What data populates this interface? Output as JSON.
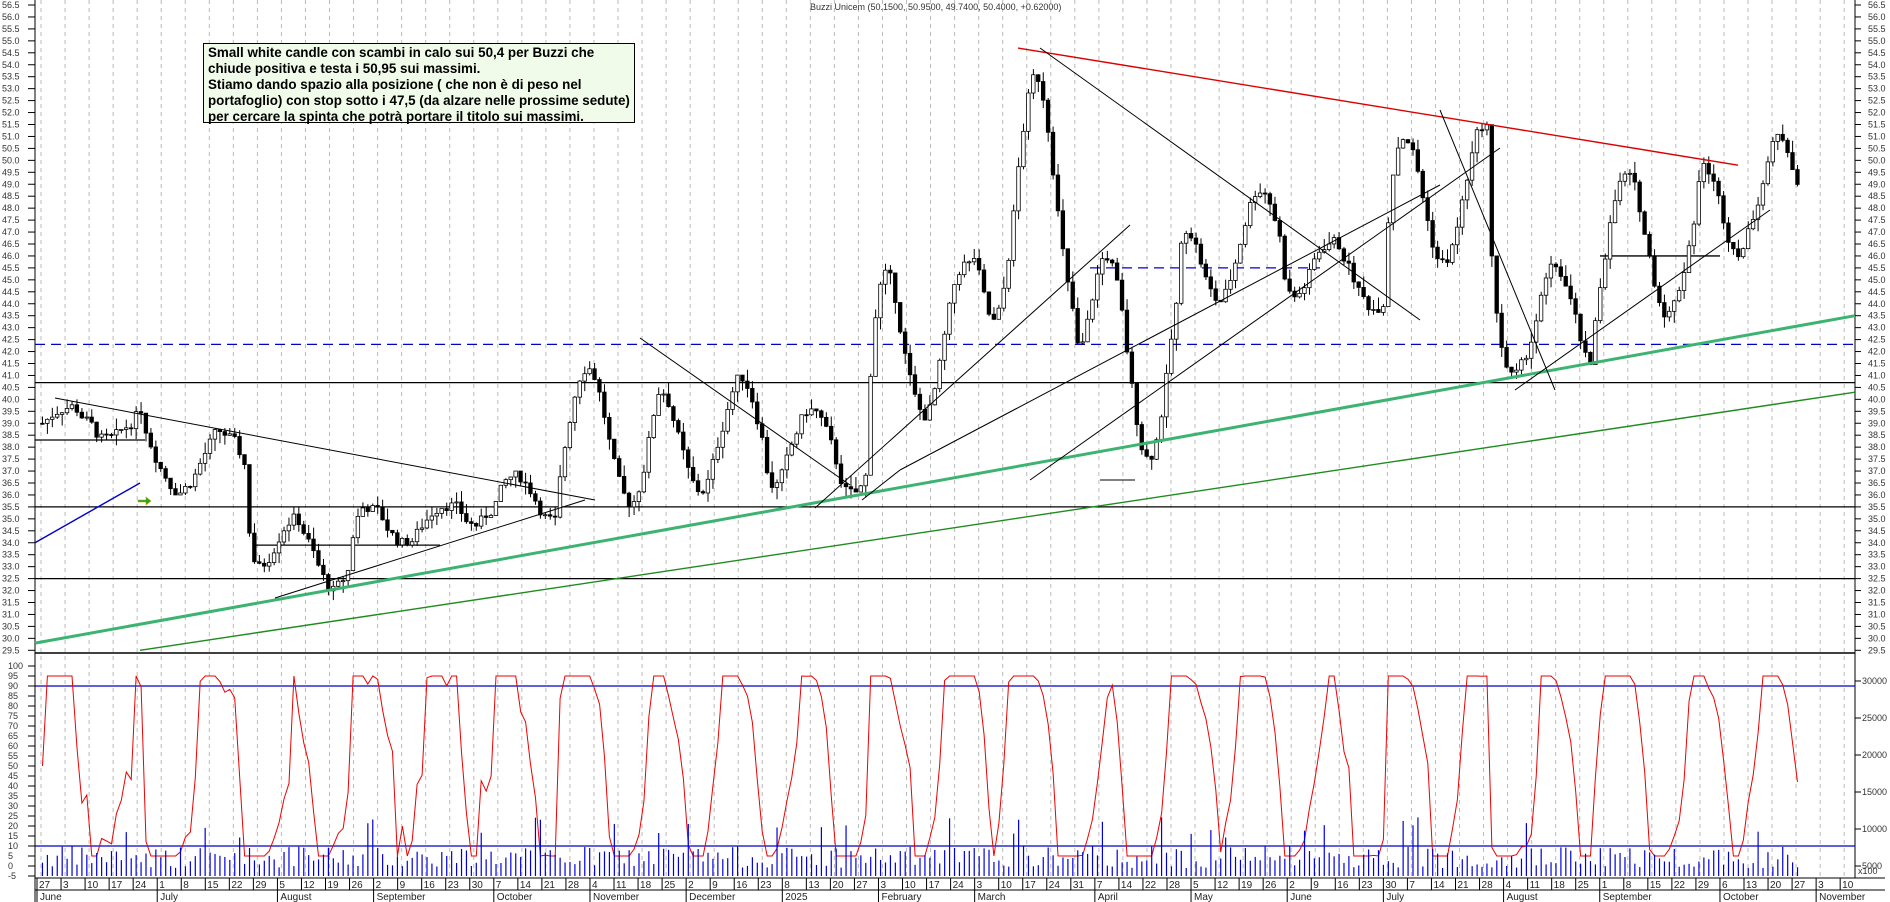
{
  "chart_data": {
    "type": "candlestick",
    "title": "Buzzi Unicem (50.1500, 50.9500, 49.7400, 50.4000, +0.62000)",
    "instrument": "Buzzi Unicem",
    "last_bar": {
      "open": 50.15,
      "high": 50.95,
      "low": 49.74,
      "close": 50.4,
      "change": 0.62
    },
    "price_axis": {
      "min": 29.5,
      "max": 56.5,
      "step": 0.5,
      "ticks": [
        "56.5",
        "56.0",
        "55.5",
        "55.0",
        "54.5",
        "54.0",
        "53.5",
        "53.0",
        "52.5",
        "52.0",
        "51.5",
        "51.0",
        "50.5",
        "50.0",
        "49.5",
        "49.0",
        "48.5",
        "48.0",
        "47.5",
        "47.0",
        "46.5",
        "46.0",
        "45.5",
        "45.0",
        "44.5",
        "44.0",
        "43.5",
        "43.0",
        "42.5",
        "42.0",
        "41.5",
        "41.0",
        "40.5",
        "40.0",
        "39.5",
        "39.0",
        "38.5",
        "38.0",
        "37.5",
        "37.0",
        "36.5",
        "36.0",
        "35.5",
        "35.0",
        "34.5",
        "34.0",
        "33.5",
        "33.0",
        "32.5",
        "32.0",
        "31.5",
        "31.0",
        "30.5",
        "30.0",
        "29.5"
      ]
    },
    "oscillator_axis": {
      "min": -5,
      "max": 100,
      "step": 5,
      "ticks": [
        "100",
        "95",
        "90",
        "85",
        "80",
        "75",
        "70",
        "65",
        "60",
        "55",
        "50",
        "45",
        "40",
        "35",
        "30",
        "25",
        "20",
        "15",
        "10",
        "5",
        "0",
        "-5"
      ],
      "overbought": 90,
      "oversold": 10
    },
    "volume_axis": {
      "unit": "x100",
      "ticks": [
        "30000",
        "25000",
        "20000",
        "15000",
        "10000",
        "5000"
      ]
    },
    "x_axis": {
      "day_ticks": [
        "27",
        "3",
        "10",
        "17",
        "24",
        "1",
        "8",
        "15",
        "22",
        "29",
        "5",
        "12",
        "19",
        "26",
        "2",
        "9",
        "16",
        "23",
        "30",
        "7",
        "14",
        "21",
        "28",
        "4",
        "11",
        "18",
        "25",
        "2",
        "9",
        "16",
        "23",
        "8",
        "13",
        "20",
        "27",
        "3",
        "10",
        "17",
        "24",
        "3",
        "10",
        "17",
        "24",
        "31",
        "7",
        "14",
        "22",
        "28",
        "5",
        "12",
        "19",
        "26",
        "2",
        "9",
        "16",
        "23",
        "30",
        "7",
        "14",
        "21",
        "28",
        "4",
        "11",
        "18",
        "25",
        "1",
        "8",
        "15",
        "22",
        "29",
        "6",
        "13",
        "20",
        "27",
        "3",
        "10"
      ],
      "months": [
        "June",
        "July",
        "August",
        "September",
        "October",
        "November",
        "December",
        "2025",
        "February",
        "March",
        "April",
        "May",
        "June",
        "July",
        "August",
        "September",
        "October",
        "November"
      ]
    },
    "horizontal_levels": [
      {
        "price": 42.3,
        "color": "#0000cc",
        "style": "dashed"
      },
      {
        "price": 45.5,
        "color": "#0000cc",
        "style": "dashed",
        "segment": "May-June 2025"
      },
      {
        "price": 40.7,
        "color": "#000000",
        "style": "solid"
      },
      {
        "price": 38.3,
        "color": "#000000",
        "style": "solid",
        "segment": "June-July 2024"
      },
      {
        "price": 35.5,
        "color": "#000000",
        "style": "solid"
      },
      {
        "price": 32.5,
        "color": "#000000",
        "style": "solid"
      },
      {
        "price": 46.0,
        "color": "#000000",
        "style": "solid",
        "segment": "Sep-Oct 2025"
      },
      {
        "price": 33.9,
        "color": "#000000",
        "style": "solid",
        "segment": "Aug-Sep 2024"
      }
    ],
    "trendlines": [
      {
        "name": "red-resistance",
        "color": "#dd0000",
        "from": [
          "Mar 2025",
          54.7
        ],
        "to": [
          "Oct 2025",
          49.8
        ]
      },
      {
        "name": "green-support-upper",
        "color": "#3cb371",
        "from": [
          "May 2024",
          29.8
        ],
        "to": [
          "Nov 2025",
          43.5
        ]
      },
      {
        "name": "green-support-lower",
        "color": "#1e8c1e",
        "from": [
          "Jul 2024",
          29.5
        ],
        "to": [
          "Nov 2025",
          40.3
        ]
      },
      {
        "name": "blue-support",
        "color": "#0000cc",
        "from": [
          "May 2024",
          34.0
        ],
        "to": [
          "Jul 2024",
          36.5
        ]
      }
    ],
    "ohlc_approx": [
      {
        "period": "Jun 2024",
        "range": [
          38.0,
          40.0
        ]
      },
      {
        "period": "Jul 2024",
        "range": [
          36.0,
          38.8
        ]
      },
      {
        "period": "Aug 2024",
        "range": [
          31.6,
          35.5
        ]
      },
      {
        "period": "Sep 2024",
        "range": [
          33.8,
          36.0
        ]
      },
      {
        "period": "Oct 2024",
        "range": [
          34.5,
          37.0
        ]
      },
      {
        "period": "Nov 2024",
        "range": [
          34.8,
          42.3
        ]
      },
      {
        "period": "Dec 2024",
        "range": [
          35.5,
          41.5
        ]
      },
      {
        "period": "Jan 2025",
        "range": [
          35.5,
          40.0
        ]
      },
      {
        "period": "Feb 2025",
        "range": [
          38.5,
          46.5
        ]
      },
      {
        "period": "Mar 2025",
        "range": [
          42.0,
          54.7
        ]
      },
      {
        "period": "Apr 2025",
        "range": [
          36.6,
          47.0
        ]
      },
      {
        "period": "May 2025",
        "range": [
          43.5,
          49.5
        ]
      },
      {
        "period": "Jun 2025",
        "range": [
          43.5,
          47.0
        ]
      },
      {
        "period": "Jul 2025",
        "range": [
          45.0,
          52.2
        ]
      },
      {
        "period": "Aug 2025",
        "range": [
          40.2,
          46.0
        ]
      },
      {
        "period": "Sep 2025",
        "range": [
          43.0,
          50.0
        ]
      },
      {
        "period": "Oct 2025",
        "range": [
          45.8,
          51.5
        ]
      }
    ],
    "grid": true,
    "legend": "none"
  },
  "annotation": {
    "lines": [
      "Small white candle con scambi in calo sui 50,4 per Buzzi che",
      "chiude positiva e testa i 50,95 sui massimi.",
      "Stiamo dando spazio alla posizione ( che non è di peso nel",
      "portafoglio) con stop sotto i 47,5 (da alzare nelle prossime sedute)",
      "per cercare la spinta che potrà portare il titolo sui massimi."
    ]
  },
  "colors": {
    "grid": "#bbbbbb",
    "resistance": "#dd0000",
    "support_green": "#3cb371",
    "support_green_thin": "#1e8c1e",
    "level_blue": "#0000cc",
    "oscillator": "#ee0000",
    "volume": "#0000dd",
    "annotation_bg": "#f1fbea"
  }
}
